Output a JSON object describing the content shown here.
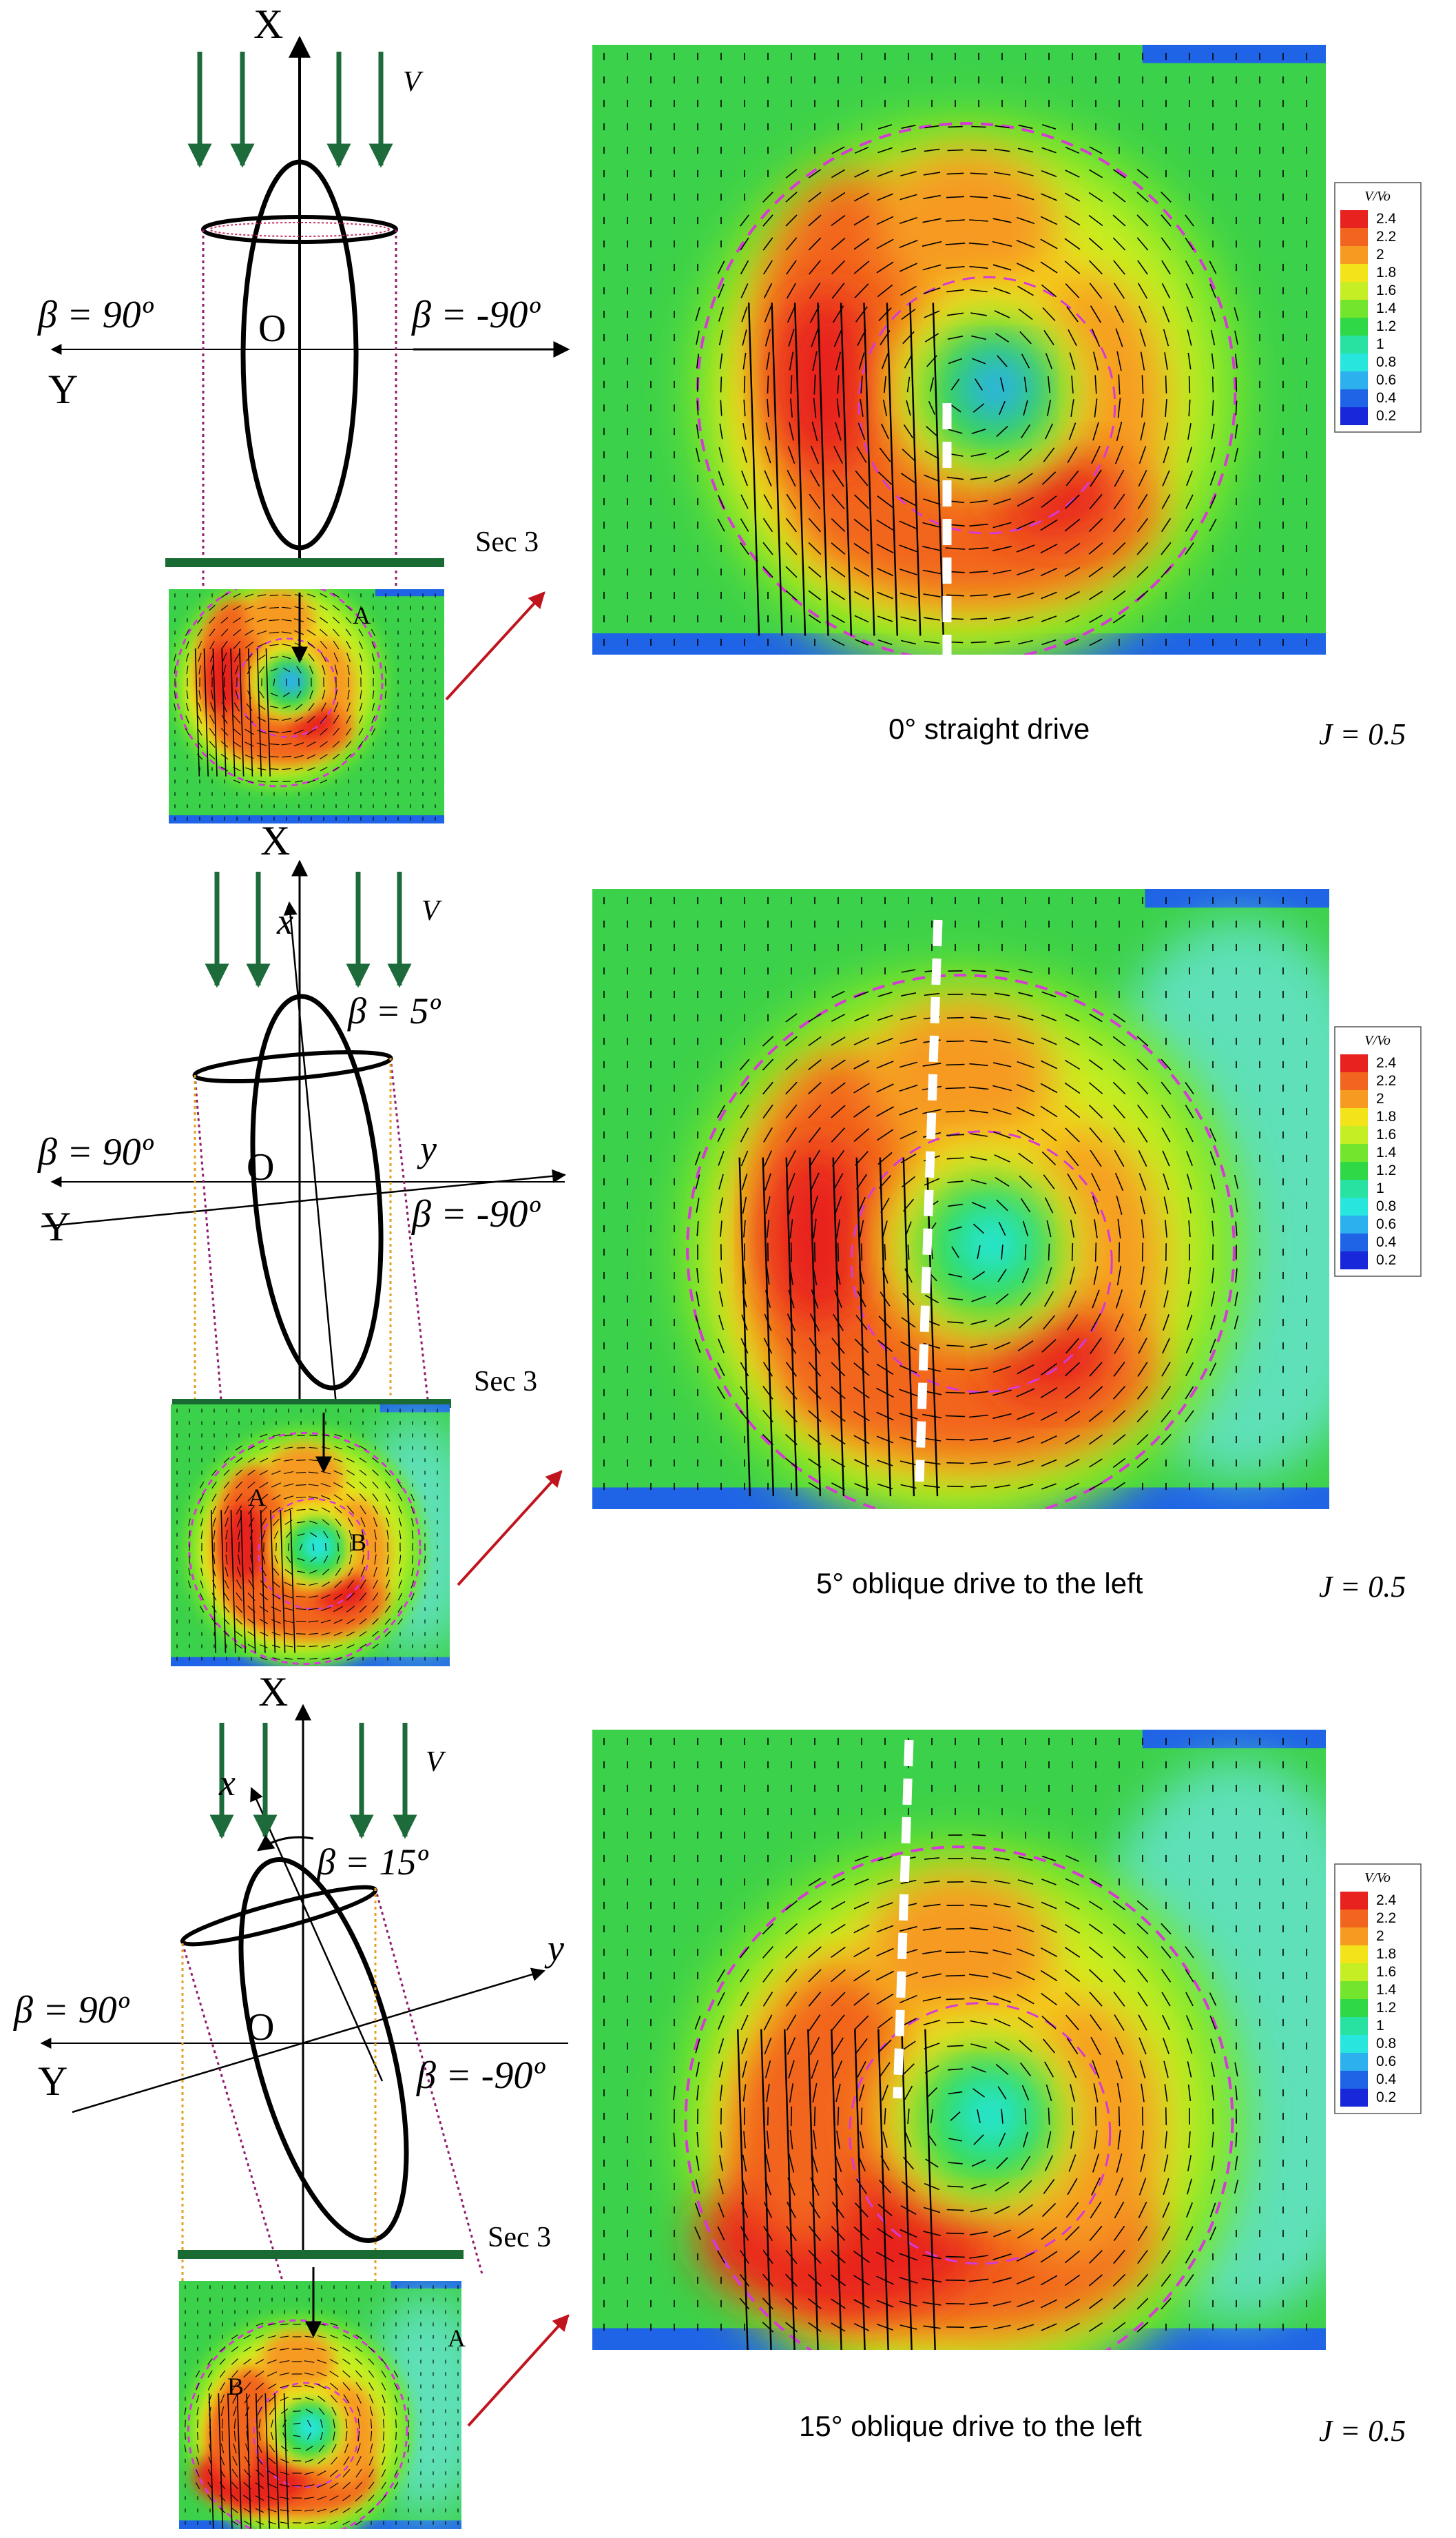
{
  "scale": {
    "title": "V/Vo",
    "labels": [
      "2.4",
      "2.2",
      "2",
      "1.8",
      "1.6",
      "1.4",
      "1.2",
      "1",
      "0.8",
      "0.6",
      "0.4",
      "0.2"
    ],
    "colors": [
      "#e8231f",
      "#f2651e",
      "#f69a22",
      "#f3e41a",
      "#c6ee24",
      "#72e52c",
      "#2fd846",
      "#27e2a0",
      "#27e6de",
      "#2db0ee",
      "#1f64e6",
      "#1727d9"
    ]
  },
  "common": {
    "flow_label": "V",
    "axis_X": "X",
    "axis_Y": "Y",
    "origin": "O",
    "beta_left": "β = 90º",
    "beta_right": "β = -90º",
    "section": "Sec 3",
    "advance_ratio": "J = 0.5",
    "bar_color": "#1a6b33",
    "arrow_color": "#c0151f",
    "flow_arrow_color": "#1d6b3a",
    "dash_color": "#d63ad6"
  },
  "panels": [
    {
      "caption": "0° straight drive",
      "beta_drift": "",
      "axis_x": "",
      "axis_y": "",
      "point_A": "A",
      "point_B": ""
    },
    {
      "caption": "5° oblique drive to the left",
      "beta_drift": "β = 5º",
      "axis_x": "x",
      "axis_y": "y",
      "point_A": "A",
      "point_B": "B"
    },
    {
      "caption": "15° oblique drive to the left",
      "beta_drift": "β = 15º",
      "axis_x": "x",
      "axis_y": "y",
      "point_A": "A",
      "point_B": "B"
    }
  ]
}
